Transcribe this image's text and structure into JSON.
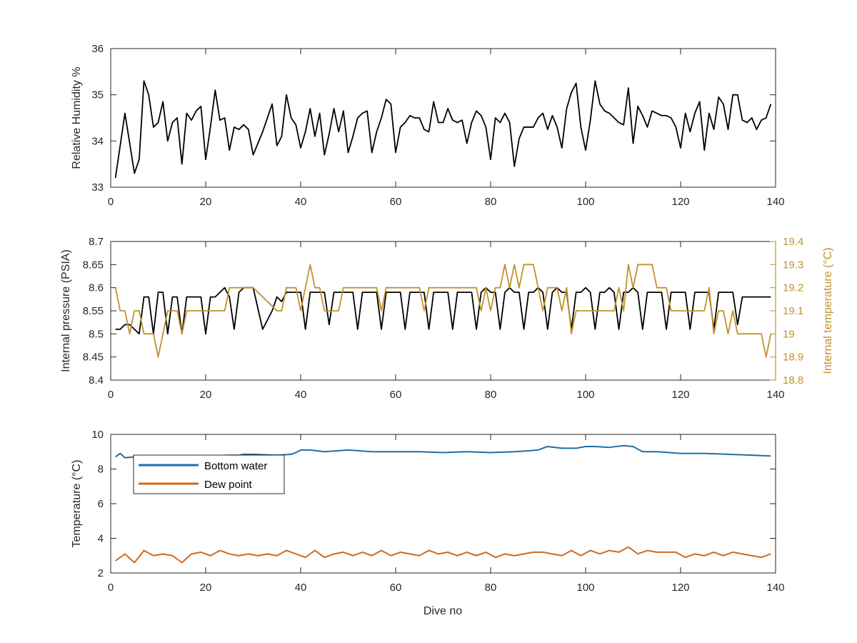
{
  "chart_data": [
    {
      "type": "line",
      "xlabel": "",
      "ylabel": "Relative Humidity %",
      "xlim": [
        0,
        140
      ],
      "ylim": [
        33,
        36
      ],
      "xticks": [
        0,
        20,
        40,
        60,
        80,
        100,
        120,
        140
      ],
      "yticks": [
        33,
        34,
        35,
        36
      ],
      "grid": false,
      "series": [
        {
          "name": "",
          "color": "#000000",
          "x": [
            1,
            3,
            5,
            6,
            7,
            8,
            9,
            10,
            11,
            12,
            13,
            14,
            15,
            16,
            17,
            18,
            19,
            20,
            21,
            22,
            23,
            24,
            25,
            26,
            27,
            28,
            29,
            30,
            32,
            34,
            35,
            36,
            37,
            38,
            39,
            40,
            41,
            42,
            43,
            44,
            45,
            46,
            47,
            48,
            49,
            50,
            51,
            52,
            53,
            54,
            55,
            56,
            57,
            58,
            59,
            60,
            61,
            62,
            63,
            64,
            65,
            66,
            67,
            68,
            69,
            70,
            71,
            72,
            73,
            74,
            75,
            76,
            77,
            78,
            79,
            80,
            81,
            82,
            83,
            84,
            85,
            86,
            87,
            88,
            89,
            90,
            91,
            92,
            93,
            94,
            95,
            96,
            97,
            98,
            99,
            100,
            101,
            102,
            103,
            104,
            105,
            106,
            107,
            108,
            109,
            110,
            111,
            112,
            113,
            114,
            115,
            116,
            117,
            118,
            119,
            120,
            121,
            122,
            123,
            124,
            125,
            126,
            127,
            128,
            129,
            130,
            131,
            132,
            133,
            134,
            135,
            136,
            137,
            138,
            139
          ],
          "values": [
            33.2,
            34.6,
            33.3,
            33.6,
            35.3,
            35.0,
            34.3,
            34.4,
            34.85,
            34.0,
            34.4,
            34.5,
            33.5,
            34.6,
            34.45,
            34.65,
            34.75,
            33.6,
            34.3,
            35.1,
            34.45,
            34.5,
            33.8,
            34.3,
            34.25,
            34.35,
            34.25,
            33.7,
            34.2,
            34.8,
            33.9,
            34.1,
            35.0,
            34.5,
            34.35,
            33.85,
            34.2,
            34.7,
            34.1,
            34.6,
            33.7,
            34.15,
            34.7,
            34.2,
            34.65,
            33.75,
            34.1,
            34.5,
            34.6,
            34.65,
            33.75,
            34.2,
            34.5,
            34.9,
            34.8,
            33.75,
            34.3,
            34.4,
            34.55,
            34.5,
            34.5,
            34.25,
            34.2,
            34.85,
            34.4,
            34.4,
            34.7,
            34.45,
            34.4,
            34.45,
            33.95,
            34.4,
            34.65,
            34.55,
            34.3,
            33.6,
            34.5,
            34.4,
            34.6,
            34.4,
            33.45,
            34.05,
            34.3,
            34.3,
            34.3,
            34.5,
            34.6,
            34.25,
            34.55,
            34.3,
            33.85,
            34.7,
            35.05,
            35.25,
            34.3,
            33.8,
            34.45,
            35.3,
            34.8,
            34.65,
            34.6,
            34.5,
            34.4,
            34.35,
            35.15,
            33.95,
            34.75,
            34.55,
            34.3,
            34.65,
            34.6,
            34.55,
            34.55,
            34.5,
            34.3,
            33.85,
            34.6,
            34.2,
            34.6,
            34.85,
            33.8,
            34.6,
            34.25,
            34.95,
            34.8,
            34.25,
            35.0,
            35.0,
            34.45,
            34.4,
            34.5,
            34.25,
            34.45,
            34.5,
            34.8
          ]
        }
      ]
    },
    {
      "type": "line",
      "xlabel": "",
      "ylabel": "Internal pressure (PSIA)",
      "ylabel_right": "Internal temperature (°C)",
      "xlim": [
        0,
        140
      ],
      "ylim": [
        8.4,
        8.7
      ],
      "ylim_right": [
        18.8,
        19.4
      ],
      "xticks": [
        0,
        20,
        40,
        60,
        80,
        100,
        120,
        140
      ],
      "yticks": [
        8.4,
        8.45,
        8.5,
        8.55,
        8.6,
        8.65,
        8.7
      ],
      "yticks_right": [
        18.8,
        18.9,
        19,
        19.1,
        19.2,
        19.3,
        19.4
      ],
      "grid": false,
      "series": [
        {
          "name": "",
          "axis": "left",
          "color": "#000000",
          "x": [
            1,
            2,
            3,
            4,
            5,
            6,
            7,
            8,
            9,
            10,
            11,
            12,
            13,
            14,
            15,
            16,
            17,
            18,
            19,
            20,
            21,
            22,
            23,
            24,
            25,
            26,
            27,
            28,
            29,
            30,
            32,
            34,
            35,
            36,
            37,
            38,
            39,
            40,
            41,
            42,
            43,
            44,
            45,
            46,
            47,
            48,
            49,
            50,
            51,
            52,
            53,
            54,
            55,
            56,
            57,
            58,
            59,
            60,
            61,
            62,
            63,
            64,
            65,
            66,
            67,
            68,
            69,
            70,
            71,
            72,
            73,
            74,
            75,
            76,
            77,
            78,
            79,
            80,
            81,
            82,
            83,
            84,
            85,
            86,
            87,
            88,
            89,
            90,
            91,
            92,
            93,
            94,
            95,
            96,
            97,
            98,
            99,
            100,
            101,
            102,
            103,
            104,
            105,
            106,
            107,
            108,
            109,
            110,
            111,
            112,
            113,
            114,
            115,
            116,
            117,
            118,
            119,
            120,
            121,
            122,
            123,
            124,
            125,
            126,
            127,
            128,
            129,
            130,
            131,
            132,
            133,
            134,
            135,
            136,
            137,
            138,
            139
          ],
          "values": [
            8.51,
            8.51,
            8.52,
            8.52,
            8.51,
            8.5,
            8.58,
            8.58,
            8.5,
            8.59,
            8.59,
            8.5,
            8.58,
            8.58,
            8.5,
            8.58,
            8.58,
            8.58,
            8.58,
            8.5,
            8.58,
            8.58,
            8.59,
            8.6,
            8.58,
            8.51,
            8.59,
            8.6,
            8.6,
            8.6,
            8.51,
            8.55,
            8.58,
            8.57,
            8.59,
            8.59,
            8.59,
            8.59,
            8.51,
            8.59,
            8.59,
            8.59,
            8.59,
            8.52,
            8.59,
            8.59,
            8.59,
            8.59,
            8.59,
            8.51,
            8.59,
            8.59,
            8.59,
            8.59,
            8.51,
            8.59,
            8.59,
            8.59,
            8.59,
            8.51,
            8.59,
            8.59,
            8.59,
            8.59,
            8.51,
            8.59,
            8.59,
            8.59,
            8.59,
            8.51,
            8.59,
            8.59,
            8.59,
            8.59,
            8.51,
            8.59,
            8.6,
            8.59,
            8.59,
            8.51,
            8.59,
            8.6,
            8.59,
            8.59,
            8.51,
            8.59,
            8.59,
            8.6,
            8.59,
            8.51,
            8.59,
            8.6,
            8.59,
            8.59,
            8.51,
            8.59,
            8.59,
            8.6,
            8.59,
            8.51,
            8.59,
            8.59,
            8.6,
            8.59,
            8.51,
            8.59,
            8.59,
            8.6,
            8.59,
            8.51,
            8.59,
            8.59,
            8.59,
            8.59,
            8.51,
            8.59,
            8.59,
            8.59,
            8.59,
            8.51,
            8.59,
            8.59,
            8.59,
            8.59,
            8.51,
            8.59,
            8.59,
            8.59,
            8.59,
            8.52,
            8.58,
            8.58,
            8.58,
            8.58,
            8.58,
            8.58,
            8.58
          ]
        },
        {
          "name": "",
          "axis": "right",
          "color": "#C0922A",
          "x": [
            1,
            2,
            3,
            4,
            5,
            6,
            7,
            8,
            9,
            10,
            11,
            12,
            13,
            14,
            15,
            16,
            17,
            18,
            19,
            20,
            21,
            22,
            23,
            24,
            25,
            30,
            35,
            36,
            37,
            38,
            39,
            40,
            41,
            42,
            43,
            44,
            45,
            46,
            47,
            48,
            49,
            50,
            51,
            52,
            53,
            54,
            55,
            56,
            57,
            58,
            59,
            60,
            61,
            62,
            63,
            64,
            65,
            66,
            67,
            68,
            69,
            70,
            71,
            72,
            73,
            74,
            75,
            76,
            77,
            78,
            79,
            80,
            81,
            82,
            83,
            84,
            85,
            86,
            87,
            88,
            89,
            90,
            91,
            92,
            93,
            94,
            95,
            96,
            97,
            98,
            99,
            100,
            101,
            102,
            103,
            104,
            105,
            106,
            107,
            108,
            109,
            110,
            111,
            112,
            113,
            114,
            115,
            116,
            117,
            118,
            119,
            120,
            121,
            122,
            123,
            124,
            125,
            126,
            127,
            128,
            129,
            130,
            131,
            132,
            133,
            134,
            135,
            136,
            137,
            138,
            139
          ],
          "values": [
            19.2,
            19.1,
            19.1,
            19.0,
            19.1,
            19.1,
            19.0,
            19.0,
            19.0,
            18.9,
            19.0,
            19.1,
            19.1,
            19.1,
            19.0,
            19.1,
            19.1,
            19.1,
            19.1,
            19.1,
            19.1,
            19.1,
            19.1,
            19.1,
            19.2,
            19.2,
            19.1,
            19.1,
            19.2,
            19.2,
            19.2,
            19.1,
            19.2,
            19.3,
            19.2,
            19.2,
            19.1,
            19.1,
            19.1,
            19.1,
            19.2,
            19.2,
            19.2,
            19.2,
            19.2,
            19.2,
            19.2,
            19.2,
            19.1,
            19.2,
            19.2,
            19.2,
            19.2,
            19.2,
            19.2,
            19.2,
            19.2,
            19.1,
            19.2,
            19.2,
            19.2,
            19.2,
            19.2,
            19.2,
            19.2,
            19.2,
            19.2,
            19.2,
            19.2,
            19.1,
            19.2,
            19.1,
            19.2,
            19.2,
            19.3,
            19.2,
            19.3,
            19.2,
            19.3,
            19.3,
            19.3,
            19.2,
            19.1,
            19.2,
            19.2,
            19.2,
            19.1,
            19.2,
            19.0,
            19.1,
            19.1,
            19.1,
            19.1,
            19.1,
            19.1,
            19.1,
            19.1,
            19.1,
            19.2,
            19.1,
            19.3,
            19.2,
            19.3,
            19.3,
            19.3,
            19.3,
            19.2,
            19.2,
            19.2,
            19.1,
            19.1,
            19.1,
            19.1,
            19.1,
            19.1,
            19.1,
            19.1,
            19.2,
            19.0,
            19.1,
            19.1,
            19.0,
            19.1,
            19.0,
            19.0,
            19.0,
            19.0,
            19.0,
            19.0,
            18.9,
            19.0
          ]
        }
      ]
    },
    {
      "type": "line",
      "xlabel": "Dive no",
      "ylabel": "Temperature (°C)",
      "xlim": [
        0,
        140
      ],
      "ylim": [
        2,
        10
      ],
      "xticks": [
        0,
        20,
        40,
        60,
        80,
        100,
        120,
        140
      ],
      "yticks": [
        2,
        4,
        6,
        8,
        10
      ],
      "grid": false,
      "legend_position": "top-left",
      "series": [
        {
          "name": "Bottom water",
          "color": "#1f6fa5",
          "x": [
            1,
            2,
            3,
            5,
            10,
            20,
            25,
            27,
            28,
            30,
            35,
            38,
            39,
            40,
            42,
            45,
            50,
            55,
            60,
            65,
            70,
            75,
            80,
            85,
            88,
            90,
            92,
            95,
            98,
            100,
            102,
            105,
            108,
            110,
            112,
            115,
            120,
            125,
            130,
            135,
            139
          ],
          "values": [
            8.7,
            8.9,
            8.65,
            8.7,
            8.7,
            8.75,
            8.8,
            8.8,
            8.85,
            8.85,
            8.8,
            8.85,
            8.95,
            9.1,
            9.1,
            9.0,
            9.1,
            9.0,
            9.0,
            9.0,
            8.95,
            9.0,
            8.95,
            9.0,
            9.05,
            9.1,
            9.3,
            9.2,
            9.2,
            9.3,
            9.3,
            9.25,
            9.35,
            9.3,
            9.0,
            9.0,
            8.9,
            8.9,
            8.85,
            8.8,
            8.75
          ]
        },
        {
          "name": "Dew point",
          "color": "#D2691E",
          "x": [
            1,
            3,
            5,
            7,
            9,
            11,
            13,
            15,
            17,
            19,
            21,
            23,
            25,
            27,
            29,
            31,
            33,
            35,
            37,
            39,
            41,
            43,
            45,
            47,
            49,
            51,
            53,
            55,
            57,
            59,
            61,
            63,
            65,
            67,
            69,
            71,
            73,
            75,
            77,
            79,
            81,
            83,
            85,
            87,
            89,
            91,
            93,
            95,
            97,
            99,
            101,
            103,
            105,
            107,
            109,
            111,
            113,
            115,
            117,
            119,
            121,
            123,
            125,
            127,
            129,
            131,
            133,
            135,
            137,
            139
          ],
          "values": [
            2.7,
            3.1,
            2.6,
            3.3,
            3.0,
            3.1,
            3.0,
            2.6,
            3.1,
            3.2,
            3.0,
            3.3,
            3.1,
            3.0,
            3.1,
            3.0,
            3.1,
            3.0,
            3.3,
            3.1,
            2.9,
            3.3,
            2.9,
            3.1,
            3.2,
            3.0,
            3.2,
            3.0,
            3.3,
            3.0,
            3.2,
            3.1,
            3.0,
            3.3,
            3.1,
            3.2,
            3.0,
            3.2,
            3.0,
            3.2,
            2.9,
            3.1,
            3.0,
            3.1,
            3.2,
            3.2,
            3.1,
            3.0,
            3.3,
            3.0,
            3.3,
            3.1,
            3.3,
            3.2,
            3.5,
            3.1,
            3.3,
            3.2,
            3.2,
            3.2,
            2.9,
            3.1,
            3.0,
            3.2,
            3.0,
            3.2,
            3.1,
            3.0,
            2.9,
            3.1
          ]
        }
      ]
    }
  ]
}
